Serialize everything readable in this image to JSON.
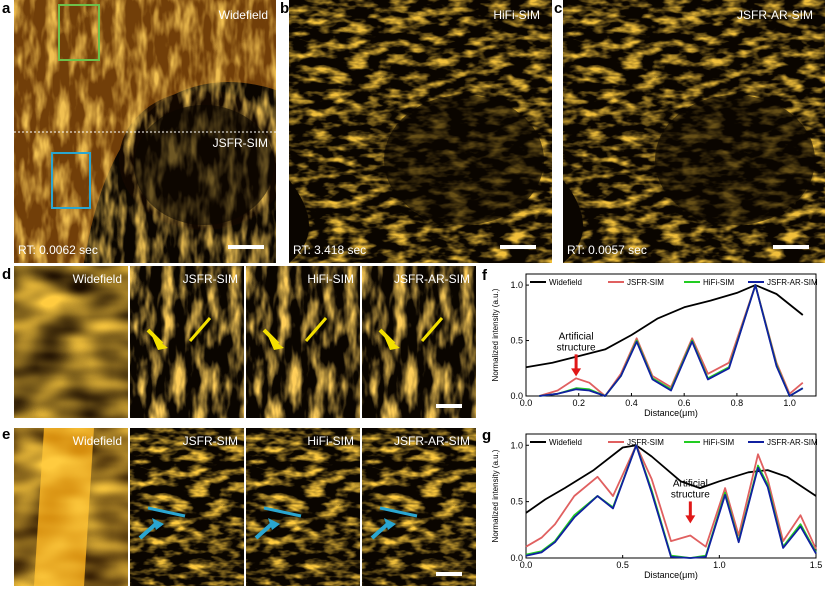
{
  "panels": {
    "a": {
      "letter": "a",
      "top_label": "Widefield",
      "bottom_label": "JSFR-SIM",
      "rt": "RT: 0.0062 sec"
    },
    "b": {
      "letter": "b",
      "label": "HiFi-SIM",
      "rt": "RT: 3.418 sec"
    },
    "c": {
      "letter": "c",
      "label": "JSFR-AR-SIM",
      "rt": "RT: 0.0057 sec"
    },
    "d": {
      "letter": "d",
      "labels": [
        "Widefield",
        "JSFR-SIM",
        "HiFi-SIM",
        "JSFR-AR-SIM"
      ]
    },
    "e": {
      "letter": "e",
      "labels": [
        "Widefield",
        "JSFR-SIM",
        "HiFi-SIM",
        "JSFR-AR-SIM"
      ]
    }
  },
  "colors": {
    "black": "#000000",
    "red": "#e06060",
    "green": "#22cc22",
    "blue": "#1020a0",
    "yellow": "#f4e000",
    "cyan": "#2aa6d0",
    "green_box": "#6ec04a"
  },
  "chart_data": [
    {
      "letter": "f",
      "type": "line",
      "ylabel": "Normalized intensity (a.u.)",
      "xlabel": "Distance(μm)",
      "xlim": [
        0,
        1.1
      ],
      "ylim": [
        0,
        1.1
      ],
      "xticks": [
        "0.0",
        "0.2",
        "0.4",
        "0.6",
        "0.8",
        "1.0"
      ],
      "yticks": [
        "0.0",
        "0.5",
        "1.0"
      ],
      "xtick_values": [
        0,
        0.2,
        0.4,
        0.6,
        0.8,
        1.0
      ],
      "ytick_values": [
        0,
        0.5,
        1.0
      ],
      "annotation": {
        "text": [
          "Artificial",
          "structure"
        ],
        "x": 0.19,
        "y": 0.15
      },
      "series": [
        {
          "name": "Widefield",
          "color": "#000000",
          "x": [
            0,
            0.1,
            0.2,
            0.3,
            0.4,
            0.5,
            0.6,
            0.7,
            0.8,
            0.87,
            0.95,
            1.05
          ],
          "y": [
            0.26,
            0.3,
            0.36,
            0.42,
            0.55,
            0.7,
            0.8,
            0.86,
            0.93,
            1.0,
            0.92,
            0.73
          ]
        },
        {
          "name": "JSFR-SIM",
          "color": "#e06060",
          "x": [
            0.05,
            0.12,
            0.19,
            0.24,
            0.3,
            0.36,
            0.42,
            0.48,
            0.55,
            0.63,
            0.69,
            0.77,
            0.87,
            0.95,
            1.0,
            1.05
          ],
          "y": [
            0.0,
            0.05,
            0.16,
            0.12,
            0.0,
            0.2,
            0.52,
            0.18,
            0.08,
            0.52,
            0.2,
            0.3,
            1.0,
            0.3,
            0.02,
            0.12
          ]
        },
        {
          "name": "HiFi-SIM",
          "color": "#22cc22",
          "x": [
            0.05,
            0.12,
            0.19,
            0.24,
            0.3,
            0.36,
            0.42,
            0.48,
            0.55,
            0.63,
            0.69,
            0.77,
            0.87,
            0.95,
            1.0,
            1.05
          ],
          "y": [
            0.0,
            0.02,
            0.07,
            0.06,
            0.0,
            0.18,
            0.5,
            0.16,
            0.06,
            0.5,
            0.16,
            0.26,
            1.0,
            0.28,
            0.0,
            0.07
          ]
        },
        {
          "name": "JSFR-AR-SIM",
          "color": "#1020a0",
          "x": [
            0.05,
            0.12,
            0.19,
            0.24,
            0.3,
            0.36,
            0.42,
            0.48,
            0.55,
            0.63,
            0.69,
            0.77,
            0.87,
            0.95,
            1.0,
            1.05
          ],
          "y": [
            0.0,
            0.02,
            0.06,
            0.05,
            0.0,
            0.18,
            0.49,
            0.15,
            0.05,
            0.49,
            0.15,
            0.25,
            1.0,
            0.27,
            0.0,
            0.07
          ]
        }
      ]
    },
    {
      "letter": "g",
      "type": "line",
      "ylabel": "Normalized intensity (a.u.)",
      "xlabel": "Distance(μm)",
      "xlim": [
        0,
        1.5
      ],
      "ylim": [
        0,
        1.1
      ],
      "xticks": [
        "0.0",
        "0.5",
        "1.0",
        "1.5"
      ],
      "yticks": [
        "0.0",
        "0.5",
        "1.0"
      ],
      "xtick_values": [
        0,
        0.5,
        1.0,
        1.5
      ],
      "ytick_values": [
        0,
        0.5,
        1.0
      ],
      "annotation": {
        "text": [
          "Artificial",
          "structure"
        ],
        "x": 0.85,
        "y": 0.28
      },
      "series": [
        {
          "name": "Widefield",
          "color": "#000000",
          "x": [
            0,
            0.1,
            0.2,
            0.35,
            0.5,
            0.57,
            0.65,
            0.8,
            0.9,
            1.0,
            1.15,
            1.25,
            1.35,
            1.5
          ],
          "y": [
            0.4,
            0.52,
            0.62,
            0.78,
            0.98,
            1.0,
            0.9,
            0.68,
            0.62,
            0.68,
            0.76,
            0.78,
            0.72,
            0.55
          ]
        },
        {
          "name": "JSFR-SIM",
          "color": "#e06060",
          "x": [
            0,
            0.08,
            0.15,
            0.25,
            0.37,
            0.45,
            0.57,
            0.65,
            0.75,
            0.85,
            0.93,
            1.03,
            1.1,
            1.2,
            1.25,
            1.33,
            1.42,
            1.5
          ],
          "y": [
            0.1,
            0.18,
            0.3,
            0.55,
            0.72,
            0.55,
            1.0,
            0.7,
            0.15,
            0.2,
            0.1,
            0.62,
            0.2,
            0.92,
            0.7,
            0.15,
            0.38,
            0.08
          ]
        },
        {
          "name": "HiFi-SIM",
          "color": "#22cc22",
          "x": [
            0,
            0.08,
            0.15,
            0.25,
            0.37,
            0.45,
            0.57,
            0.65,
            0.75,
            0.85,
            0.93,
            1.03,
            1.1,
            1.2,
            1.25,
            1.33,
            1.42,
            1.5
          ],
          "y": [
            0.03,
            0.06,
            0.15,
            0.38,
            0.55,
            0.45,
            1.0,
            0.6,
            0.02,
            0.0,
            0.02,
            0.58,
            0.15,
            0.82,
            0.65,
            0.1,
            0.3,
            0.05
          ]
        },
        {
          "name": "JSFR-AR-SIM",
          "color": "#1020a0",
          "x": [
            0,
            0.08,
            0.15,
            0.25,
            0.37,
            0.45,
            0.57,
            0.65,
            0.75,
            0.85,
            0.93,
            1.03,
            1.1,
            1.2,
            1.25,
            1.33,
            1.42,
            1.5
          ],
          "y": [
            0.02,
            0.05,
            0.14,
            0.36,
            0.55,
            0.44,
            1.0,
            0.58,
            0.01,
            0.0,
            0.01,
            0.56,
            0.14,
            0.8,
            0.63,
            0.09,
            0.28,
            0.04
          ]
        }
      ]
    }
  ]
}
